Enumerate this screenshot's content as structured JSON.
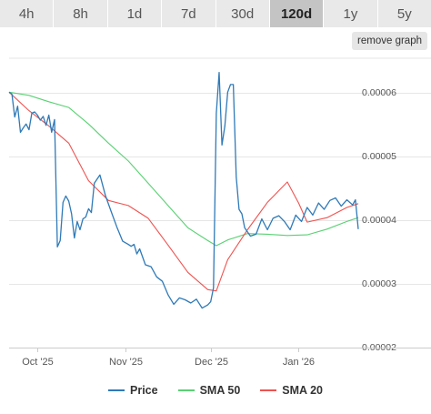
{
  "range_tabs": {
    "items": [
      "4h",
      "8h",
      "1d",
      "7d",
      "30d",
      "120d",
      "1y",
      "5y"
    ],
    "active": "120d"
  },
  "remove_graph_label": "remove graph",
  "colors": {
    "price": "#2f7ab8",
    "sma50": "#59d173",
    "sma20": "#ef5350",
    "grid": "#e6e6e6",
    "axis_text": "#555555"
  },
  "chart_data": {
    "type": "line",
    "title": "",
    "xlabel": "",
    "ylabel": "",
    "x_tick_labels": [
      "Oct '25",
      "Nov '25",
      "Dec '25",
      "Jan '26"
    ],
    "y_ticks": [
      2e-05,
      3e-05,
      4e-05,
      5e-05,
      6e-05
    ],
    "y_tick_labels": [
      "0.00002",
      "0.00003",
      "0.00004",
      "0.00005",
      "0.00006"
    ],
    "ylim": [
      2e-05,
      6.6e-05
    ],
    "xlim": [
      "2025-09-21",
      "2026-01-22"
    ],
    "legend_position": "bottom",
    "grid": true,
    "series": [
      {
        "name": "Price",
        "x": [
          "2025-09-21",
          "2025-09-22",
          "2025-09-23",
          "2025-09-24",
          "2025-09-25",
          "2025-09-26",
          "2025-09-27",
          "2025-09-28",
          "2025-09-29",
          "2025-09-30",
          "2025-10-01",
          "2025-10-02",
          "2025-10-03",
          "2025-10-04",
          "2025-10-05",
          "2025-10-06",
          "2025-10-07",
          "2025-10-08",
          "2025-10-09",
          "2025-10-10",
          "2025-10-11",
          "2025-10-12",
          "2025-10-13",
          "2025-10-14",
          "2025-10-15",
          "2025-10-16",
          "2025-10-17",
          "2025-10-18",
          "2025-10-19",
          "2025-10-20",
          "2025-10-21",
          "2025-10-23",
          "2025-10-25",
          "2025-10-27",
          "2025-10-29",
          "2025-10-31",
          "2025-11-02",
          "2025-11-03",
          "2025-11-04",
          "2025-11-05",
          "2025-11-06",
          "2025-11-08",
          "2025-11-10",
          "2025-11-12",
          "2025-11-14",
          "2025-11-16",
          "2025-11-18",
          "2025-11-20",
          "2025-11-22",
          "2025-11-24",
          "2025-11-26",
          "2025-11-28",
          "2025-11-30",
          "2025-12-01",
          "2025-12-02",
          "2025-12-03",
          "2025-12-04",
          "2025-12-05",
          "2025-12-06",
          "2025-12-07",
          "2025-12-08",
          "2025-12-09",
          "2025-12-10",
          "2025-12-11",
          "2025-12-12",
          "2025-12-13",
          "2025-12-15",
          "2025-12-17",
          "2025-12-19",
          "2025-12-21",
          "2025-12-23",
          "2025-12-25",
          "2025-12-27",
          "2025-12-29",
          "2025-12-31",
          "2026-01-02",
          "2026-01-04",
          "2026-01-06",
          "2026-01-08",
          "2026-01-10",
          "2026-01-12",
          "2026-01-14",
          "2026-01-16",
          "2026-01-18",
          "2026-01-20",
          "2026-01-21",
          "2026-01-22"
        ],
        "values": [
          6.01e-05,
          5.98e-05,
          5.62e-05,
          5.79e-05,
          5.38e-05,
          5.45e-05,
          5.51e-05,
          5.42e-05,
          5.68e-05,
          5.7e-05,
          5.65e-05,
          5.57e-05,
          5.63e-05,
          5.49e-05,
          5.65e-05,
          5.38e-05,
          5.58e-05,
          3.58e-05,
          3.68e-05,
          4.28e-05,
          4.38e-05,
          4.3e-05,
          4.1e-05,
          3.72e-05,
          3.98e-05,
          3.85e-05,
          4.02e-05,
          4.05e-05,
          4.18e-05,
          4.12e-05,
          4.58e-05,
          4.71e-05,
          4.38e-05,
          4.13e-05,
          3.89e-05,
          3.67e-05,
          3.62e-05,
          3.59e-05,
          3.62e-05,
          3.47e-05,
          3.55e-05,
          3.3e-05,
          3.27e-05,
          3.11e-05,
          3.04e-05,
          2.83e-05,
          2.68e-05,
          2.78e-05,
          2.75e-05,
          2.7e-05,
          2.76e-05,
          2.62e-05,
          2.67e-05,
          2.72e-05,
          2.94e-05,
          5.68e-05,
          6.32e-05,
          5.18e-05,
          5.48e-05,
          6.01e-05,
          6.13e-05,
          6.13e-05,
          4.68e-05,
          4.17e-05,
          4.1e-05,
          3.88e-05,
          3.75e-05,
          3.78e-05,
          4.02e-05,
          3.85e-05,
          4.03e-05,
          4.07e-05,
          3.98e-05,
          3.85e-05,
          4.08e-05,
          3.98e-05,
          4.2e-05,
          4.08e-05,
          4.27e-05,
          4.17e-05,
          4.31e-05,
          4.35e-05,
          4.22e-05,
          4.32e-05,
          4.24e-05,
          4.32e-05,
          3.86e-05
        ]
      },
      {
        "name": "SMA 50",
        "x": [
          "2025-09-21",
          "2025-09-28",
          "2025-10-05",
          "2025-10-12",
          "2025-10-19",
          "2025-10-26",
          "2025-11-02",
          "2025-11-09",
          "2025-11-16",
          "2025-11-23",
          "2025-11-30",
          "2025-12-03",
          "2025-12-07",
          "2025-12-14",
          "2025-12-21",
          "2025-12-28",
          "2026-01-04",
          "2026-01-11",
          "2026-01-18",
          "2026-01-22"
        ],
        "values": [
          6.01e-05,
          5.96e-05,
          5.86e-05,
          5.77e-05,
          5.51e-05,
          5.21e-05,
          4.93e-05,
          4.58e-05,
          4.23e-05,
          3.88e-05,
          3.68e-05,
          3.6e-05,
          3.69e-05,
          3.79e-05,
          3.78e-05,
          3.76e-05,
          3.77e-05,
          3.86e-05,
          3.98e-05,
          4.04e-05
        ]
      },
      {
        "name": "SMA 20",
        "x": [
          "2025-09-21",
          "2025-09-28",
          "2025-10-05",
          "2025-10-12",
          "2025-10-19",
          "2025-10-26",
          "2025-11-02",
          "2025-11-09",
          "2025-11-16",
          "2025-11-23",
          "2025-11-30",
          "2025-12-03",
          "2025-12-07",
          "2025-12-14",
          "2025-12-21",
          "2025-12-28",
          "2026-01-01",
          "2026-01-04",
          "2026-01-11",
          "2026-01-18",
          "2026-01-22"
        ],
        "values": [
          6.01e-05,
          5.72e-05,
          5.48e-05,
          5.21e-05,
          4.62e-05,
          4.31e-05,
          4.23e-05,
          4.03e-05,
          3.61e-05,
          3.18e-05,
          2.91e-05,
          2.89e-05,
          3.38e-05,
          3.85e-05,
          4.28e-05,
          4.6e-05,
          4.27e-05,
          3.97e-05,
          4.04e-05,
          4.2e-05,
          4.26e-05
        ]
      }
    ]
  }
}
